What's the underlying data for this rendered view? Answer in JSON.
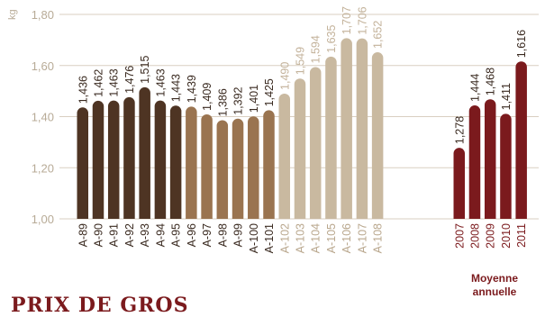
{
  "chart_data": {
    "type": "bar",
    "unit": "kg",
    "ylim": [
      1.0,
      1.8
    ],
    "yticks": [
      "1,00",
      "1,20",
      "1,40",
      "1,60",
      "1,80"
    ],
    "ytick_values": [
      1.0,
      1.2,
      1.4,
      1.6,
      1.8
    ],
    "grid": true,
    "groups": [
      {
        "color": "#4e3423",
        "categories": [
          "A-89",
          "A-90",
          "A-91",
          "A-92",
          "A-93",
          "A-94",
          "A-95"
        ],
        "values": [
          1.436,
          1.462,
          1.463,
          1.476,
          1.515,
          1.463,
          1.443
        ],
        "labels": [
          "1,436",
          "1,462",
          "1,463",
          "1,476",
          "1,515",
          "1,463",
          "1,443"
        ]
      },
      {
        "color": "#9a7450",
        "categories": [
          "A-96",
          "A-97",
          "A-98",
          "A-99",
          "A-100",
          "A-101"
        ],
        "values": [
          1.439,
          1.409,
          1.386,
          1.392,
          1.401,
          1.425
        ],
        "labels": [
          "1,439",
          "1,409",
          "1,386",
          "1,392",
          "1,401",
          "1,425"
        ]
      },
      {
        "color": "#c9b9a0",
        "categories": [
          "A-102",
          "A-103",
          "A-104",
          "A-105",
          "A-106",
          "A-107",
          "A-108"
        ],
        "values": [
          1.49,
          1.549,
          1.594,
          1.635,
          1.707,
          1.706,
          1.652
        ],
        "labels": [
          "1,490",
          "1,549",
          "1,594",
          "1,635",
          "1,707",
          "1,706",
          "1,652"
        ]
      },
      {
        "color": "#7b1a1d",
        "categories": [
          "2007",
          "2008",
          "2009",
          "2010",
          "2011"
        ],
        "values": [
          1.278,
          1.444,
          1.468,
          1.411,
          1.616
        ],
        "labels": [
          "1,278",
          "1,444",
          "1,468",
          "1,411",
          "1,616"
        ]
      }
    ],
    "group_label": "Moyenne annuelle"
  },
  "footer": {
    "title": "PRIX DE GROS"
  },
  "colors": {
    "grid": "#d9cfc1",
    "axis_text": "#b8ab97",
    "label_text": "#3a2a20"
  }
}
